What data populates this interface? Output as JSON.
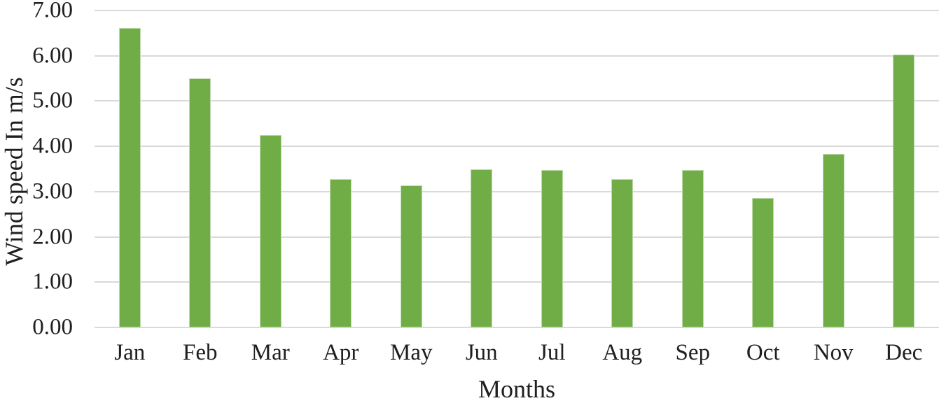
{
  "chart_data": {
    "type": "bar",
    "title": "",
    "xlabel": "Months",
    "ylabel": "Wind speed In m/s",
    "categories": [
      "Jan",
      "Feb",
      "Mar",
      "Apr",
      "May",
      "Jun",
      "Jul",
      "Aug",
      "Sep",
      "Oct",
      "Nov",
      "Dec"
    ],
    "values": [
      6.61,
      5.5,
      4.25,
      3.28,
      3.13,
      3.5,
      3.48,
      3.27,
      3.47,
      2.86,
      3.83,
      6.02
    ],
    "ylim": [
      0,
      7
    ],
    "ytick_step": 1,
    "ytick_labels": [
      "0.00",
      "1.00",
      "2.00",
      "3.00",
      "4.00",
      "5.00",
      "6.00",
      "7.00"
    ],
    "grid": "horizontal",
    "legend": "none",
    "colors": {
      "bar": "#70AD47",
      "gridline": "#D9D9D9",
      "text": "#1f1f1f",
      "background": "#ffffff"
    }
  }
}
